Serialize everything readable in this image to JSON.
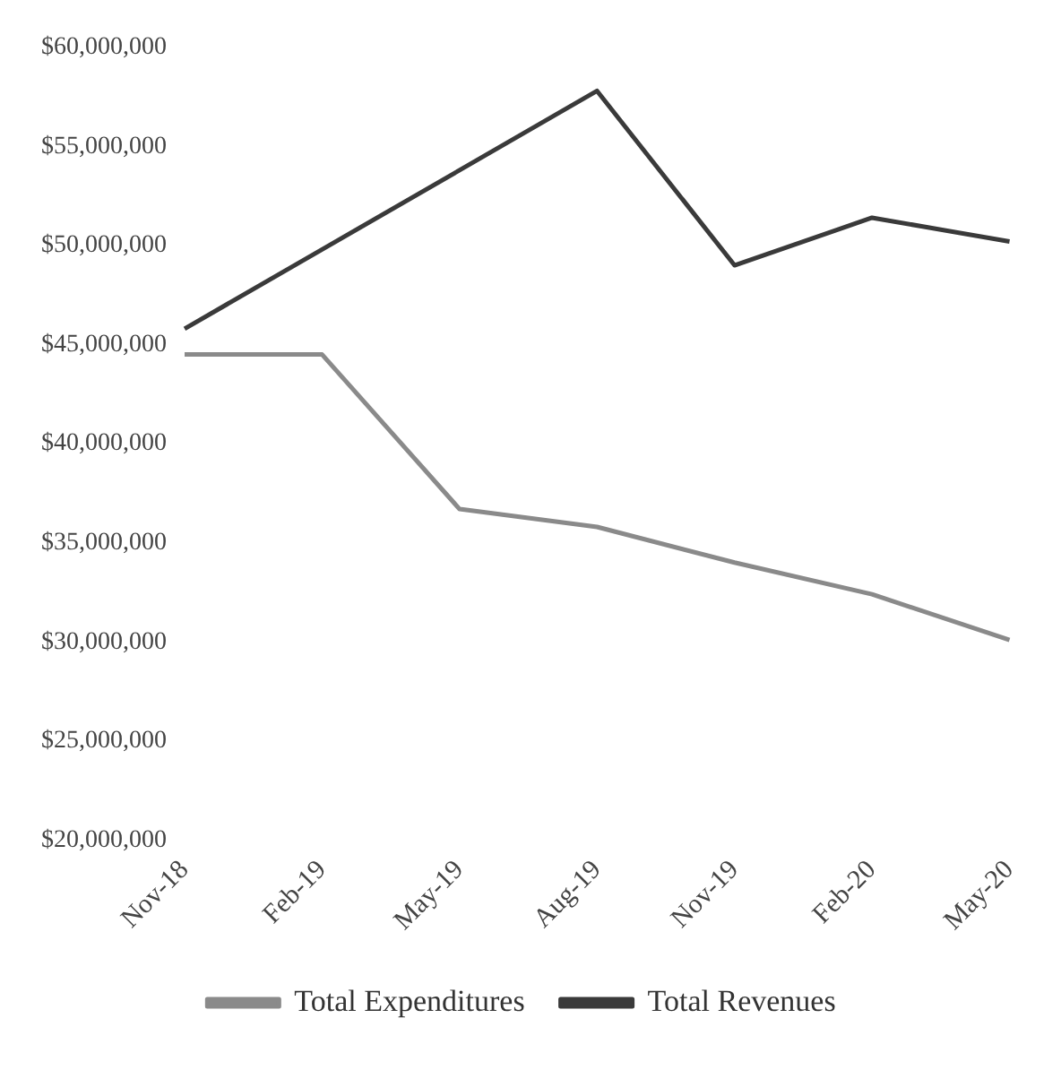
{
  "chart_data": {
    "type": "line",
    "categories": [
      "Nov-18",
      "Feb-19",
      "May-19",
      "Aug-19",
      "Nov-19",
      "Feb-20",
      "May-20"
    ],
    "series": [
      {
        "name": "Total Expenditures",
        "color": "#8a8a8a",
        "values": [
          44500000,
          44500000,
          36700000,
          35800000,
          34000000,
          32400000,
          30100000
        ]
      },
      {
        "name": "Total Revenues",
        "color": "#3a3a3a",
        "values": [
          45800000,
          49800000,
          53800000,
          57800000,
          49000000,
          51400000,
          50200000
        ]
      }
    ],
    "ylim": [
      20000000,
      60000000
    ],
    "yticks": [
      {
        "value": 20000000,
        "label": "$20,000,000"
      },
      {
        "value": 25000000,
        "label": "$25,000,000"
      },
      {
        "value": 30000000,
        "label": "$30,000,000"
      },
      {
        "value": 35000000,
        "label": "$35,000,000"
      },
      {
        "value": 40000000,
        "label": "$40,000,000"
      },
      {
        "value": 45000000,
        "label": "$45,000,000"
      },
      {
        "value": 50000000,
        "label": "$50,000,000"
      },
      {
        "value": 55000000,
        "label": "$55,000,000"
      },
      {
        "value": 60000000,
        "label": "$60,000,000"
      }
    ],
    "legend": "bottom",
    "marker": "none",
    "line_style": "solid"
  }
}
